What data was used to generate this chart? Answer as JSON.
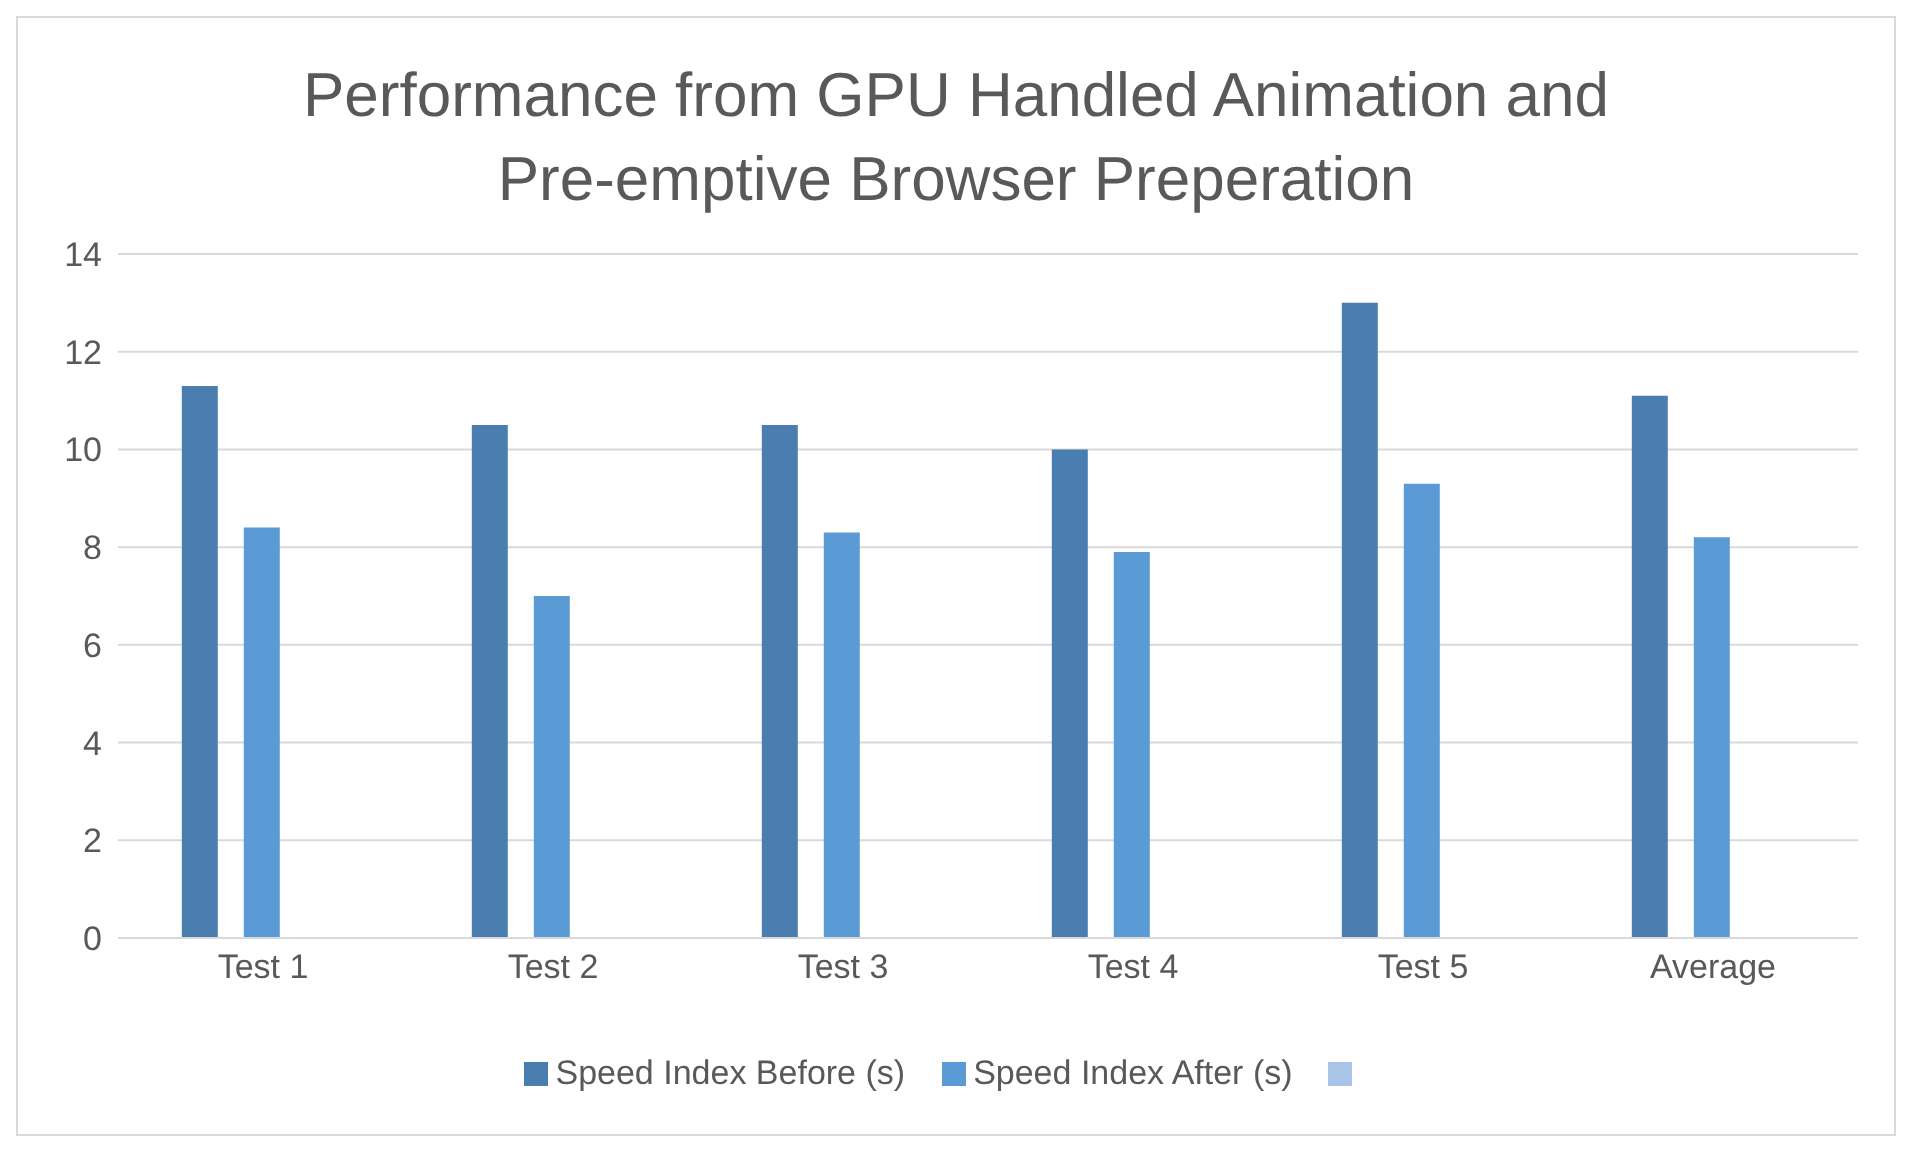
{
  "chart_data": {
    "type": "bar",
    "title": "Performance from GPU Handled Animation and Pre-emptive Browser Preperation",
    "categories": [
      "Test 1",
      "Test 2",
      "Test 3",
      "Test 4",
      "Test 5",
      "Average"
    ],
    "series": [
      {
        "name": "Speed Index Before (s)",
        "color": "#4a7eb0",
        "values": [
          11.3,
          10.5,
          10.5,
          10.0,
          13.0,
          11.1
        ]
      },
      {
        "name": "Speed Index After (s)",
        "color": "#5b9bd5",
        "values": [
          8.4,
          7.0,
          8.3,
          7.9,
          9.3,
          8.2
        ]
      },
      {
        "color": "#a9c4e6",
        "values": [
          null,
          null,
          null,
          null,
          null,
          null
        ]
      }
    ],
    "ylim": [
      0,
      14
    ],
    "yticks": [
      0,
      2,
      4,
      6,
      8,
      10,
      12,
      14
    ],
    "grid": "y",
    "legend": "bottom"
  }
}
